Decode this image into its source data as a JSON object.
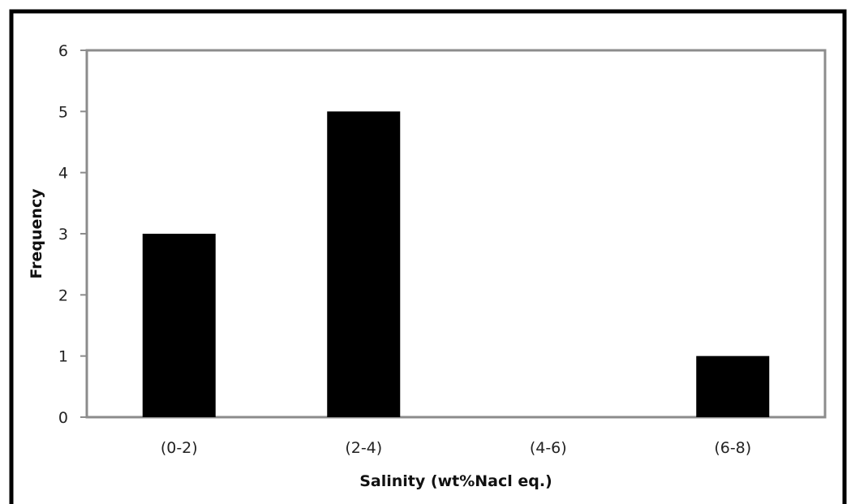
{
  "chart_data": {
    "type": "bar",
    "categories": [
      "(0-2)",
      "(2-4)",
      "(4-6)",
      "(6-8)"
    ],
    "values": [
      3,
      5,
      0,
      1
    ],
    "title": "",
    "xlabel": "Salinity (wt%Nacl eq.)",
    "ylabel": "Frequency",
    "ylim": [
      0,
      6
    ],
    "yticks": [
      "0",
      "1",
      "2",
      "3",
      "4",
      "5",
      "6"
    ],
    "grid": false,
    "legend": "none",
    "bar_color": "#000000",
    "plot_border_color": "#8c8c8c"
  }
}
